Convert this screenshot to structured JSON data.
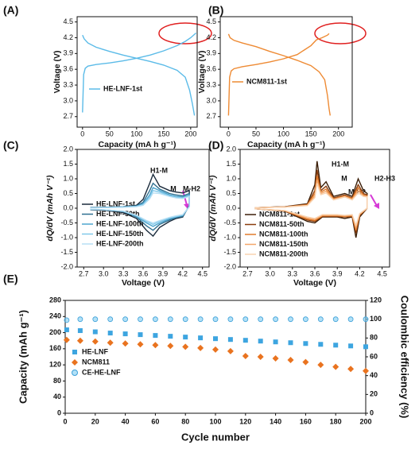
{
  "chart_data": [
    {
      "type": "line",
      "label": "(A)",
      "xlabel": "Capacity (mA h g⁻¹)",
      "ylabel": "Voltage (V)",
      "xlim": [
        -10,
        212
      ],
      "xticks": [
        0,
        50,
        100,
        150,
        200
      ],
      "ylim": [
        2.5,
        4.6
      ],
      "yticks": [
        2.7,
        {
          "value": 3.0,
          "label": "3.0"
        },
        3.3,
        3.6,
        3.9,
        4.2,
        4.5
      ],
      "x": [
        0,
        2,
        5,
        10,
        25,
        50,
        75,
        100,
        125,
        150,
        175,
        190,
        200,
        210,
        null,
        0,
        3,
        10,
        25,
        50,
        75,
        100,
        125,
        150,
        175,
        190,
        198,
        203,
        207
      ],
      "series": [
        {
          "name": "HE-LNF-1st",
          "color": "#5bbbe8",
          "values": [
            2.78,
            3.5,
            3.62,
            3.66,
            3.69,
            3.72,
            3.76,
            3.81,
            3.87,
            3.95,
            4.05,
            4.13,
            4.2,
            4.29,
            null,
            4.25,
            4.18,
            4.1,
            4.02,
            3.94,
            3.87,
            3.81,
            3.75,
            3.68,
            3.58,
            3.45,
            3.2,
            2.95,
            2.72
          ]
        }
      ]
    },
    {
      "type": "line",
      "label": "(B)",
      "xlabel": "Capacity (mA h g⁻¹)",
      "ylabel": "Voltage (V)",
      "xlim": [
        -15,
        225
      ],
      "xticks": [
        0,
        50,
        100,
        150,
        200
      ],
      "ylim": [
        2.5,
        4.6
      ],
      "yticks": [
        2.7,
        {
          "value": 3.0,
          "label": "3.0"
        },
        3.3,
        3.6,
        3.9,
        4.2,
        4.5
      ],
      "x": [
        0,
        2,
        5,
        10,
        25,
        50,
        75,
        100,
        125,
        150,
        160,
        170,
        180,
        183,
        null,
        0,
        3,
        10,
        25,
        50,
        75,
        100,
        125,
        150,
        165,
        175,
        180,
        183,
        185
      ],
      "series": [
        {
          "name": "NCM811-1st",
          "color": "#ee8a33",
          "values": [
            2.72,
            3.45,
            3.57,
            3.61,
            3.65,
            3.69,
            3.74,
            3.8,
            3.88,
            4.05,
            4.16,
            4.2,
            4.25,
            4.28,
            null,
            4.27,
            4.2,
            4.15,
            4.1,
            4.03,
            3.94,
            3.86,
            3.77,
            3.67,
            3.55,
            3.4,
            3.1,
            2.85,
            2.72
          ]
        }
      ]
    },
    {
      "type": "line",
      "label": "(C)",
      "xlabel": "Voltage (V)",
      "ylabel": "dQ/dV (mAh V⁻¹)",
      "xlim": [
        2.6,
        4.6
      ],
      "xticks": [
        2.7,
        {
          "value": 3.0,
          "label": "3.0"
        },
        3.3,
        3.6,
        3.9,
        4.2,
        4.5
      ],
      "ylim": [
        -2,
        2
      ],
      "yticks": [
        {
          "value": -2.0,
          "label": "-2.0"
        },
        -1.5,
        {
          "value": -1.0,
          "label": "-1.0"
        },
        -0.5,
        {
          "value": 0.0,
          "label": "0.0"
        },
        0.5,
        {
          "value": 1.0,
          "label": "1.0"
        },
        1.5,
        {
          "value": 2.0,
          "label": "2.0"
        }
      ],
      "annotations": [
        "H1-M",
        "M",
        "M-H2"
      ],
      "x": [
        2.8,
        3.0,
        3.3,
        3.5,
        3.6,
        3.7,
        3.75,
        3.85,
        4.0,
        4.1,
        4.2,
        4.3,
        4.3,
        4.2,
        4.1,
        4.0,
        3.85,
        3.75,
        3.65,
        3.5,
        3.3,
        3.0,
        2.8
      ],
      "series": [
        {
          "name": "HE-LNF-1st",
          "color": "#1b2b3c",
          "values": [
            0.03,
            0.03,
            0.05,
            0.1,
            0.3,
            0.85,
            1.15,
            0.75,
            0.6,
            0.55,
            0.52,
            0.6,
            0.1,
            -0.3,
            -0.35,
            -0.45,
            -0.65,
            -0.95,
            -0.75,
            -0.35,
            -0.15,
            -0.07,
            -0.05
          ]
        },
        {
          "name": "HE-LNF-50th",
          "color": "#2e6f90",
          "values": [
            0.03,
            0.03,
            0.05,
            0.08,
            0.2,
            0.6,
            0.85,
            0.65,
            0.5,
            0.45,
            0.42,
            0.5,
            0.08,
            -0.28,
            -0.32,
            -0.4,
            -0.55,
            -0.75,
            -0.6,
            -0.3,
            -0.12,
            -0.06,
            -0.04
          ]
        },
        {
          "name": "HE-LNF-100th",
          "color": "#4ea6cf",
          "values": [
            0.02,
            0.03,
            0.04,
            0.07,
            0.15,
            0.45,
            0.7,
            0.6,
            0.45,
            0.4,
            0.38,
            0.45,
            0.06,
            -0.25,
            -0.3,
            -0.36,
            -0.5,
            -0.62,
            -0.5,
            -0.28,
            -0.11,
            -0.05,
            -0.04
          ]
        },
        {
          "name": "HE-LNF-150th",
          "color": "#80c8ea",
          "values": [
            0.02,
            0.02,
            0.04,
            0.06,
            0.12,
            0.38,
            0.6,
            0.55,
            0.42,
            0.37,
            0.35,
            0.42,
            0.05,
            -0.23,
            -0.28,
            -0.33,
            -0.45,
            -0.55,
            -0.45,
            -0.25,
            -0.1,
            -0.05,
            -0.03
          ]
        },
        {
          "name": "HE-LNF-200th",
          "color": "#b7dff4",
          "values": [
            0.02,
            0.02,
            0.03,
            0.05,
            0.1,
            0.32,
            0.52,
            0.5,
            0.4,
            0.35,
            0.33,
            0.4,
            0.05,
            -0.22,
            -0.26,
            -0.31,
            -0.42,
            -0.5,
            -0.42,
            -0.24,
            -0.1,
            -0.05,
            -0.03
          ]
        }
      ]
    },
    {
      "type": "line",
      "label": "(D)",
      "xlabel": "Voltage (V)",
      "ylabel": "dQ/dV (mAh V⁻¹)",
      "xlim": [
        2.6,
        4.6
      ],
      "xticks": [
        2.7,
        {
          "value": 3.0,
          "label": "3.0"
        },
        3.3,
        3.6,
        3.9,
        4.2,
        4.5
      ],
      "ylim": [
        -2,
        2
      ],
      "yticks": [
        {
          "value": -2.0,
          "label": "-2.0"
        },
        -1.5,
        {
          "value": -1.0,
          "label": "-1.0"
        },
        -0.5,
        {
          "value": 0.0,
          "label": "0.0"
        },
        0.5,
        {
          "value": 1.0,
          "label": "1.0"
        },
        1.5,
        {
          "value": 2.0,
          "label": "2.0"
        }
      ],
      "annotations": [
        "H1-M",
        "M",
        "M-H2",
        "H2-H3"
      ],
      "x": [
        2.8,
        3.2,
        3.5,
        3.6,
        3.63,
        3.68,
        3.75,
        3.85,
        4.0,
        4.1,
        4.18,
        4.25,
        4.3,
        4.3,
        4.2,
        4.15,
        4.1,
        4.0,
        3.9,
        3.7,
        3.6,
        3.5,
        3.2,
        2.8
      ],
      "series": [
        {
          "name": "NCM811-1st",
          "color": "#3a1e08",
          "values": [
            0.02,
            0.05,
            0.15,
            0.8,
            1.6,
            0.7,
            0.9,
            0.4,
            0.5,
            0.4,
            1.0,
            0.6,
            0.5,
            0.0,
            -0.3,
            -1.0,
            -0.3,
            -0.35,
            -0.3,
            -0.3,
            -0.5,
            -0.45,
            -0.1,
            -0.02
          ]
        },
        {
          "name": "NCM811-50th",
          "color": "#8a3d0d",
          "values": [
            0.02,
            0.05,
            0.13,
            0.6,
            1.3,
            0.6,
            0.75,
            0.35,
            0.45,
            0.35,
            0.8,
            0.5,
            0.45,
            0.0,
            -0.25,
            -0.85,
            -0.28,
            -0.3,
            -0.28,
            -0.28,
            -0.45,
            -0.4,
            -0.1,
            -0.02
          ]
        },
        {
          "name": "NCM811-100th",
          "color": "#e07a2a",
          "values": [
            0.02,
            0.04,
            0.12,
            0.5,
            1.1,
            0.55,
            0.65,
            0.32,
            0.42,
            0.33,
            0.7,
            0.45,
            0.42,
            0.0,
            -0.22,
            -0.75,
            -0.26,
            -0.28,
            -0.26,
            -0.26,
            -0.42,
            -0.37,
            -0.09,
            -0.02
          ]
        },
        {
          "name": "NCM811-150th",
          "color": "#f3a66a",
          "values": [
            0.02,
            0.04,
            0.1,
            0.42,
            0.95,
            0.5,
            0.58,
            0.3,
            0.4,
            0.3,
            0.6,
            0.42,
            0.4,
            0.0,
            -0.2,
            -0.65,
            -0.24,
            -0.26,
            -0.24,
            -0.24,
            -0.38,
            -0.34,
            -0.08,
            -0.02
          ]
        },
        {
          "name": "NCM811-200th",
          "color": "#f9d3b0",
          "values": [
            0.02,
            0.04,
            0.09,
            0.36,
            0.85,
            0.46,
            0.52,
            0.28,
            0.38,
            0.28,
            0.52,
            0.4,
            0.38,
            0.0,
            -0.18,
            -0.58,
            -0.22,
            -0.24,
            -0.22,
            -0.22,
            -0.35,
            -0.3,
            -0.08,
            -0.02
          ]
        }
      ]
    },
    {
      "type": "scatter",
      "label": "(E)",
      "xlabel": "Cycle number",
      "ylabel": "Capacity (mAh g⁻¹)",
      "y2label": "Coulombic efficiency (%)",
      "xlim": [
        0,
        200
      ],
      "xticks": [
        0,
        20,
        40,
        60,
        80,
        100,
        120,
        140,
        160,
        180,
        200
      ],
      "ylim": [
        0,
        280
      ],
      "yticks": [
        0,
        40,
        80,
        120,
        160,
        200,
        240,
        280
      ],
      "y2lim": [
        0,
        120
      ],
      "y2ticks": [
        0,
        20,
        40,
        60,
        80,
        100,
        120
      ],
      "x": [
        1,
        10,
        20,
        30,
        40,
        50,
        60,
        70,
        80,
        90,
        100,
        110,
        120,
        130,
        140,
        150,
        160,
        170,
        180,
        190,
        200
      ],
      "series": [
        {
          "name": "HE-LNF",
          "color": "#3da5e0",
          "marker": "square",
          "values": [
            207,
            205,
            202,
            199,
            197,
            195,
            193,
            191,
            189,
            187,
            185,
            183,
            181,
            179,
            177,
            175,
            173,
            171,
            169,
            167,
            165
          ]
        },
        {
          "name": "NCM811",
          "color": "#e9731f",
          "marker": "diamond",
          "values": [
            182,
            180,
            178,
            175,
            173,
            171,
            169,
            167,
            165,
            162,
            158,
            154,
            142,
            140,
            136,
            132,
            127,
            120,
            115,
            110,
            105
          ]
        },
        {
          "name": "CE-HE-LNF",
          "color": "#7fcdf2",
          "marker": "circle",
          "axis": "y2",
          "values": [
            99,
            100,
            100,
            100,
            100,
            100,
            100,
            100,
            100,
            100,
            100,
            100,
            100,
            100,
            100,
            100,
            100,
            100,
            100,
            100,
            100
          ]
        }
      ]
    }
  ]
}
